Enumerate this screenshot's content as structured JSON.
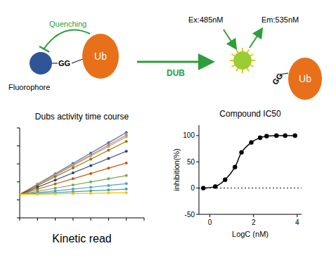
{
  "diagram": {
    "quenching": "Quenching",
    "fluorophore": "Fluorophore",
    "substrate_linker": "GG",
    "substrate_protein": "Ub",
    "enzyme": "DUB",
    "excitation": "Ex:485nM",
    "emission": "Em:535nM",
    "product_linker": "GG",
    "product_protein": "Ub"
  },
  "chart_data": [
    {
      "type": "line",
      "title": "Dubs activity time course",
      "caption": "Kinetic read",
      "x": [
        0,
        500,
        1000,
        1500,
        2000,
        2500,
        3000
      ],
      "xlim": [
        0,
        3500
      ],
      "xticks": [
        0,
        500,
        1000,
        1500,
        2000,
        2500,
        3000,
        3500
      ],
      "ylim": [
        0,
        1000
      ],
      "yticks": [
        0,
        200,
        400,
        600,
        800,
        1000
      ],
      "tick_labels": false,
      "grid": false,
      "marker": "circle",
      "line_style": "solid",
      "series": [
        {
          "color": "#4472c4",
          "values": [
            260,
            375,
            490,
            605,
            720,
            835,
            950
          ]
        },
        {
          "color": "#ed7d31",
          "values": [
            260,
            370,
            480,
            590,
            700,
            810,
            920
          ]
        },
        {
          "color": "#a5a5a5",
          "values": [
            260,
            367,
            473,
            580,
            687,
            793,
            900
          ]
        },
        {
          "color": "#997300",
          "values": [
            260,
            358,
            457,
            555,
            653,
            752,
            850
          ]
        },
        {
          "color": "#264478",
          "values": [
            260,
            340,
            420,
            500,
            580,
            660,
            740
          ]
        },
        {
          "color": "#c55a11",
          "values": [
            260,
            318,
            377,
            435,
            493,
            552,
            610
          ]
        },
        {
          "color": "#70ad47",
          "values": [
            260,
            295,
            330,
            365,
            400,
            435,
            470
          ]
        },
        {
          "color": "#5b9bd5",
          "values": [
            260,
            280,
            300,
            320,
            340,
            360,
            380
          ]
        },
        {
          "color": "#43a39a",
          "values": [
            260,
            270,
            280,
            290,
            300,
            310,
            320
          ]
        },
        {
          "color": "#ffc000",
          "values": [
            260,
            263,
            267,
            270,
            273,
            277,
            280
          ]
        }
      ]
    },
    {
      "type": "line",
      "title": "Compound IC50",
      "xlabel": "LogC (nM)",
      "ylabel": "inhibition(%)",
      "x": [
        -0.3,
        0.25,
        0.7,
        1.15,
        1.45,
        1.9,
        2.3,
        2.6,
        3.05,
        3.45,
        3.9
      ],
      "values": [
        0,
        3,
        16,
        40,
        68,
        87,
        96,
        99,
        100,
        100,
        100
      ],
      "color": "#000000",
      "marker": "circle",
      "line_style": "smooth",
      "xlim": [
        -0.5,
        4.2
      ],
      "xticks": [
        0,
        2,
        4
      ],
      "ylim": [
        -50,
        120
      ],
      "yticks": [
        -50,
        0,
        50,
        100
      ],
      "grid": false
    }
  ]
}
